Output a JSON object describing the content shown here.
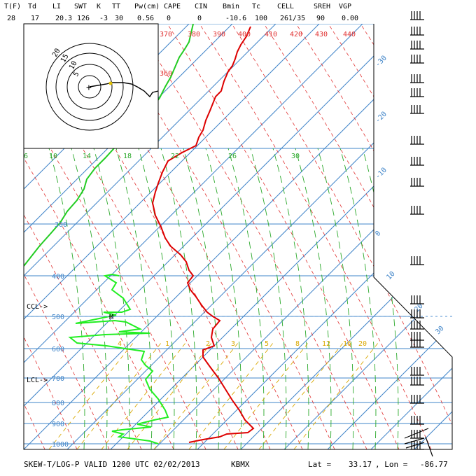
{
  "header": {
    "labels": [
      "T(F)",
      "Td",
      "LI",
      "SWT",
      "K",
      "TT",
      "Pw(cm)",
      "CAPE",
      "CIN",
      "Bmin",
      "Tc",
      "CELL",
      "SREH",
      "VGP"
    ],
    "values": [
      "28",
      "17",
      "20.3",
      "126",
      "-3",
      "30",
      "0.56",
      "0",
      "0",
      "-10.6",
      "100",
      "261/35",
      "90",
      "0.00"
    ]
  },
  "footer": {
    "title": "SKEW-T/LOG-P VALID 1200 UTC 02/02/2013",
    "station": "KBMX",
    "lat_label": "Lat =",
    "lat": "33.17",
    "lon_label": ", Lon =",
    "lon": "-86.77"
  },
  "annotations": {
    "ccl": "CCL->",
    "lcl": "LCL->",
    "marker": "M"
  },
  "colors": {
    "isobar": "#3f84c8",
    "isotherm": "#3f84c8",
    "dry_adiabat": "#e03030",
    "moist_adiabat": "#2aa82a",
    "mixing_ratio": "#d9a800",
    "temperature": "#dd0000",
    "dewpoint": "#22ee22",
    "theta_e": "#22cc22",
    "wind_barb": "#000000"
  },
  "chart_data": {
    "type": "skew-t",
    "pressure_levels": [
      "400",
      "500",
      "600",
      "700",
      "800",
      "900",
      "1000"
    ],
    "isobar_labels_upper": [
      "300"
    ],
    "isotherm_labels": [
      "-30",
      "-20",
      "-10",
      "0",
      "10",
      "20",
      "30"
    ],
    "dry_adiabat_labels": [
      "370",
      "380",
      "390",
      "400",
      "410",
      "420",
      "430",
      "440",
      "360"
    ],
    "theta_e_labels": [
      "6",
      "10",
      "14",
      "18",
      "22",
      "26",
      "30"
    ],
    "mixing_ratio_labels": [
      "4",
      "1",
      "2",
      "3",
      "5",
      "8",
      "12",
      "16",
      "20"
    ],
    "temperature_profile": [
      [
        0,
        -73
      ],
      [
        0,
        -68
      ],
      [
        0,
        -66
      ],
      [
        0,
        -64
      ],
      [
        0,
        -62
      ],
      [
        0,
        -60
      ],
      [
        0,
        -58
      ],
      [
        0,
        -56
      ],
      [
        0,
        -55
      ],
      [
        0,
        -54
      ],
      [
        0,
        -52
      ],
      [
        0,
        -48
      ]
    ],
    "hodograph": {
      "rings": [
        "5",
        "10",
        "15",
        "20"
      ]
    }
  }
}
